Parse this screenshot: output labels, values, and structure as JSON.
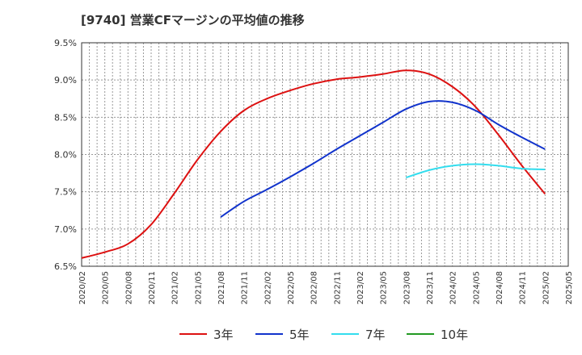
{
  "chart_data": {
    "type": "line",
    "title": "[9740]  営業CFマージンの平均値の推移",
    "xlabel": "",
    "ylabel": "",
    "x": [
      "2020/02",
      "2020/05",
      "2020/08",
      "2020/11",
      "2021/02",
      "2021/05",
      "2021/08",
      "2021/11",
      "2022/02",
      "2022/05",
      "2022/08",
      "2022/11",
      "2023/02",
      "2023/05",
      "2023/08",
      "2023/11",
      "2024/02",
      "2024/05",
      "2024/08",
      "2024/11",
      "2025/02",
      "2025/05"
    ],
    "y_ticks": [
      "6.5%",
      "7.0%",
      "7.5%",
      "8.0%",
      "8.5%",
      "9.0%",
      "9.5%"
    ],
    "y_tick_values": [
      6.5,
      7.0,
      7.5,
      8.0,
      8.5,
      9.0,
      9.5
    ],
    "ylim": [
      6.5,
      9.5
    ],
    "grid": true,
    "legend_position": "bottom",
    "series": [
      {
        "name": "3年",
        "color": "#dd1111",
        "values": [
          6.61,
          6.69,
          6.8,
          7.06,
          7.48,
          7.93,
          8.31,
          8.59,
          8.75,
          8.86,
          8.95,
          9.01,
          9.04,
          9.08,
          9.13,
          9.08,
          8.91,
          8.64,
          8.26,
          7.85,
          7.47,
          null
        ]
      },
      {
        "name": "5年",
        "color": "#1133cc",
        "values": [
          null,
          null,
          null,
          null,
          null,
          null,
          7.16,
          7.37,
          7.53,
          7.7,
          7.88,
          8.07,
          8.25,
          8.43,
          8.61,
          8.71,
          8.7,
          8.59,
          8.4,
          8.23,
          8.07,
          null
        ]
      },
      {
        "name": "7年",
        "color": "#33ddee",
        "values": [
          null,
          null,
          null,
          null,
          null,
          null,
          null,
          null,
          null,
          null,
          null,
          null,
          null,
          null,
          7.69,
          7.79,
          7.85,
          7.87,
          7.85,
          7.81,
          7.8,
          null
        ]
      },
      {
        "name": "10年",
        "color": "#229922",
        "values": [
          null,
          null,
          null,
          null,
          null,
          null,
          null,
          null,
          null,
          null,
          null,
          null,
          null,
          null,
          null,
          null,
          null,
          null,
          null,
          null,
          null,
          null
        ]
      }
    ]
  }
}
